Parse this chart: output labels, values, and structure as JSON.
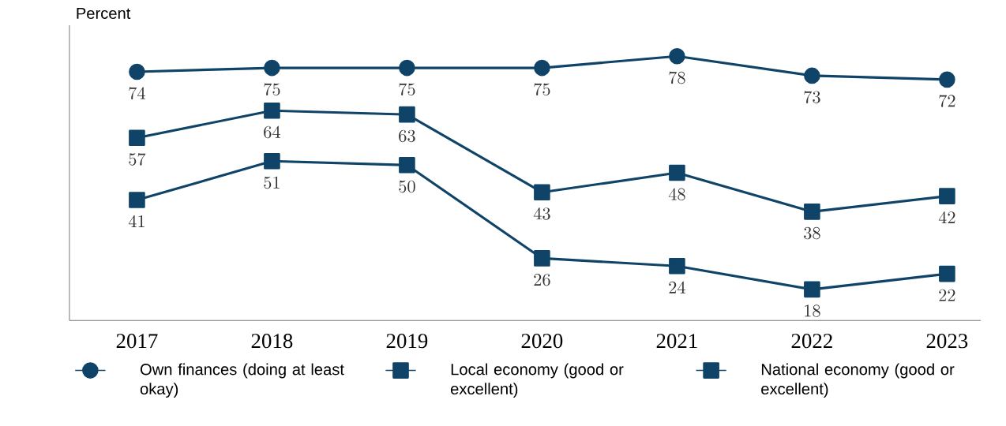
{
  "chart_data": {
    "type": "line",
    "ylabel": "Percent",
    "categories": [
      "2017",
      "2018",
      "2019",
      "2020",
      "2021",
      "2022",
      "2023"
    ],
    "series": [
      {
        "name": "Own finances (doing at least okay)",
        "color": "#0f4368",
        "marker": "circle",
        "values": [
          74,
          75,
          75,
          75,
          78,
          73,
          72
        ]
      },
      {
        "name": "Local economy (good or excellent)",
        "color": "#0f4368",
        "marker": "square",
        "values": [
          57,
          64,
          63,
          43,
          48,
          38,
          42
        ]
      },
      {
        "name": "National economy (good or excellent)",
        "color": "#0f4368",
        "marker": "square",
        "values": [
          41,
          51,
          50,
          26,
          24,
          18,
          22
        ]
      }
    ],
    "tick_labels": "x",
    "data_labels": true,
    "legend": "bottom",
    "line_style": "solid"
  }
}
